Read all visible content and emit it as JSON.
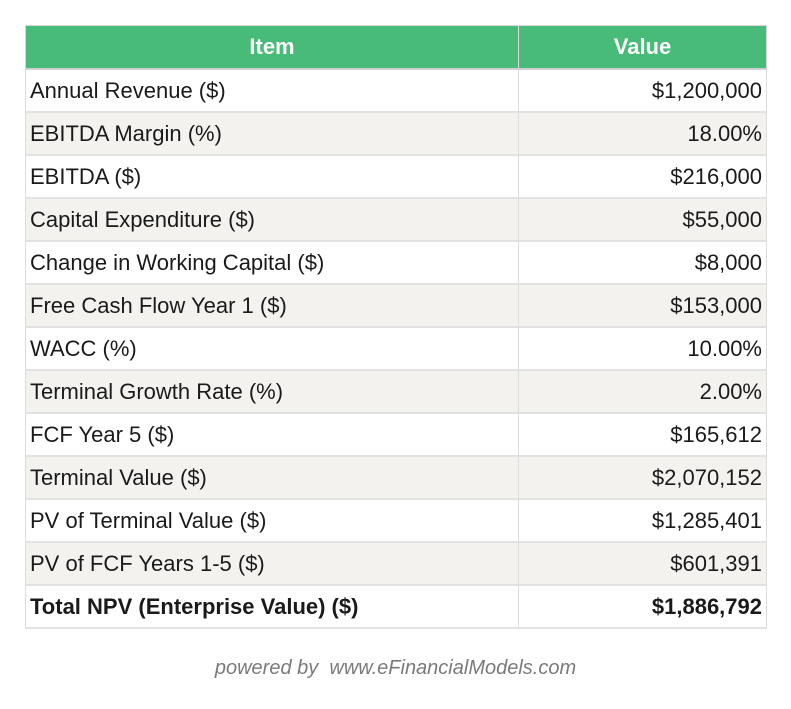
{
  "table": {
    "headers": {
      "item": "Item",
      "value": "Value"
    },
    "rows": [
      {
        "item": "Annual Revenue ($)",
        "value": "$1,200,000"
      },
      {
        "item": "EBITDA Margin (%)",
        "value": "18.00%"
      },
      {
        "item": "EBITDA ($)",
        "value": "$216,000"
      },
      {
        "item": "Capital Expenditure ($)",
        "value": "$55,000"
      },
      {
        "item": "Change in Working Capital ($)",
        "value": "$8,000"
      },
      {
        "item": "Free Cash Flow Year 1 ($)",
        "value": "$153,000"
      },
      {
        "item": "WACC (%)",
        "value": "10.00%"
      },
      {
        "item": "Terminal Growth Rate (%)",
        "value": "2.00%"
      },
      {
        "item": "FCF Year 5 ($)",
        "value": "$165,612"
      },
      {
        "item": "Terminal Value ($)",
        "value": "$2,070,152"
      },
      {
        "item": "PV of Terminal Value ($)",
        "value": "$1,285,401"
      },
      {
        "item": "PV of FCF Years 1-5 ($)",
        "value": "$601,391"
      },
      {
        "item": "Total NPV (Enterprise Value) ($)",
        "value": "$1,886,792"
      }
    ]
  },
  "footer": {
    "text": "powered by  www.eFinancialModels.com"
  },
  "colors": {
    "header_bg": "#48bb78",
    "header_text": "#ffffff",
    "stripe_bg": "#f3f2ef",
    "footer_text": "#7a7a7a"
  }
}
